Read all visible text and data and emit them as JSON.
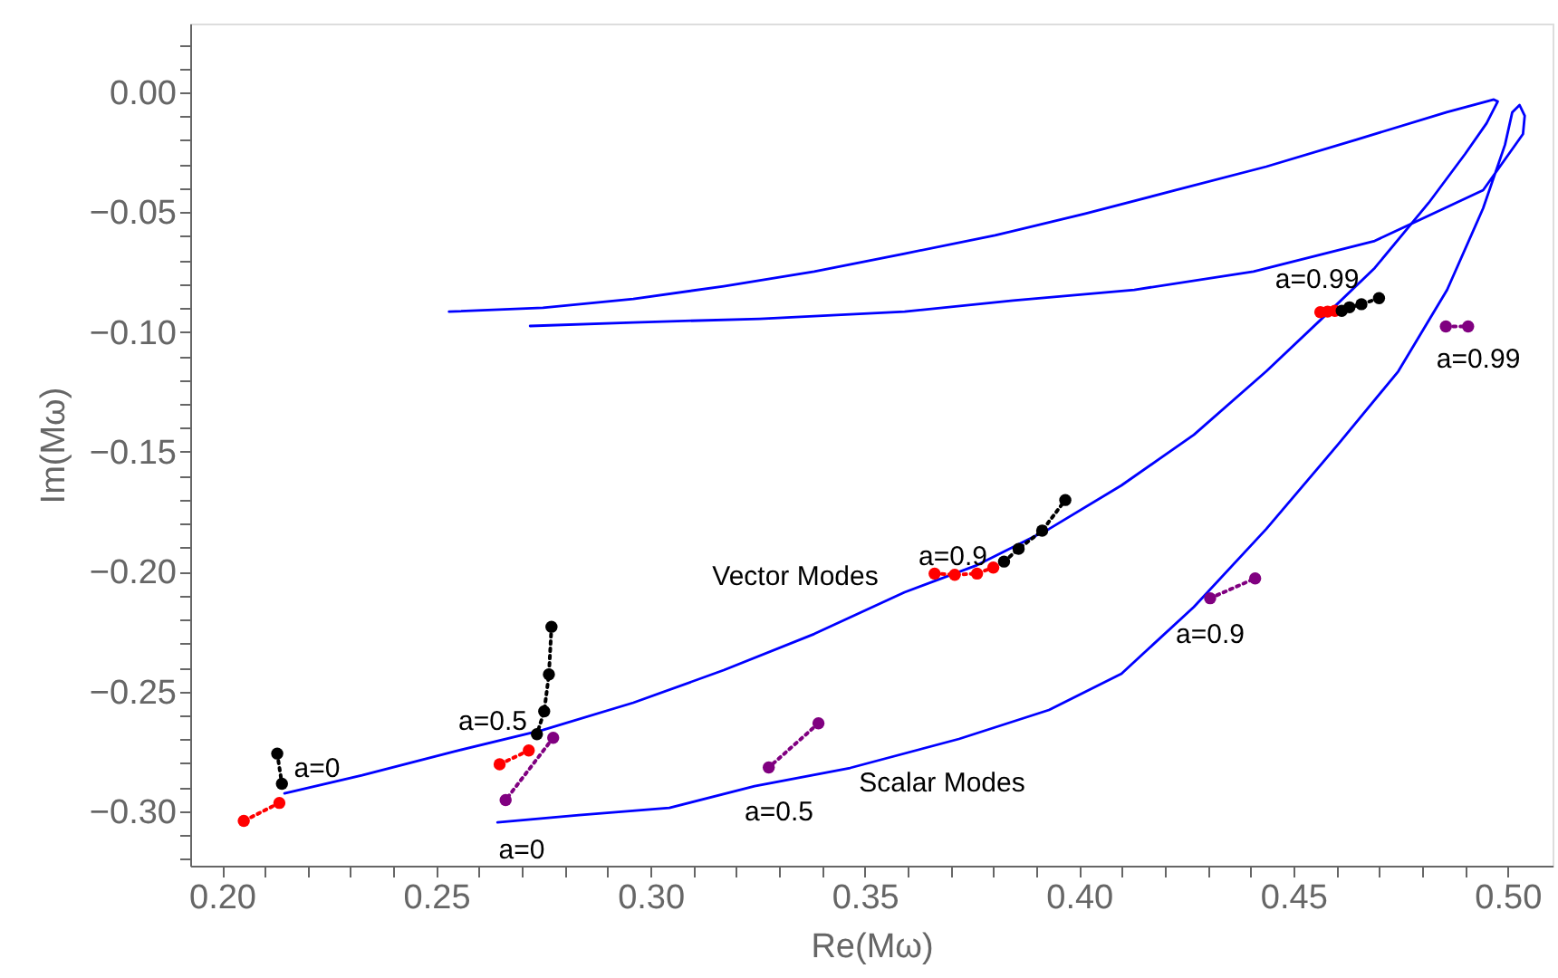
{
  "chart_data": {
    "type": "line",
    "xlabel": "Re(Mω)",
    "ylabel": "Im(Mω)",
    "grid": false,
    "xlim": [
      0.1926,
      0.5105
    ],
    "ylim": [
      -0.3227,
      0.0287
    ],
    "xticks": [
      {
        "value": 0.2,
        "label": "0.20"
      },
      {
        "value": 0.21,
        "label": null
      },
      {
        "value": 0.22,
        "label": null
      },
      {
        "value": 0.23,
        "label": null
      },
      {
        "value": 0.24,
        "label": null
      },
      {
        "value": 0.25,
        "label": "0.25"
      },
      {
        "value": 0.26,
        "label": null
      },
      {
        "value": 0.27,
        "label": null
      },
      {
        "value": 0.28,
        "label": null
      },
      {
        "value": 0.29,
        "label": null
      },
      {
        "value": 0.3,
        "label": "0.30"
      },
      {
        "value": 0.31,
        "label": null
      },
      {
        "value": 0.32,
        "label": null
      },
      {
        "value": 0.33,
        "label": null
      },
      {
        "value": 0.34,
        "label": null
      },
      {
        "value": 0.35,
        "label": "0.35"
      },
      {
        "value": 0.36,
        "label": null
      },
      {
        "value": 0.37,
        "label": null
      },
      {
        "value": 0.38,
        "label": null
      },
      {
        "value": 0.39,
        "label": null
      },
      {
        "value": 0.4,
        "label": "0.40"
      },
      {
        "value": 0.41,
        "label": null
      },
      {
        "value": 0.42,
        "label": null
      },
      {
        "value": 0.43,
        "label": null
      },
      {
        "value": 0.44,
        "label": null
      },
      {
        "value": 0.45,
        "label": "0.45"
      },
      {
        "value": 0.46,
        "label": null
      },
      {
        "value": 0.47,
        "label": null
      },
      {
        "value": 0.48,
        "label": null
      },
      {
        "value": 0.49,
        "label": null
      },
      {
        "value": 0.5,
        "label": "0.50"
      }
    ],
    "yticks": [
      {
        "value": -0.32,
        "label": null
      },
      {
        "value": -0.31,
        "label": null
      },
      {
        "value": -0.3,
        "label": "−0.30"
      },
      {
        "value": -0.29,
        "label": null
      },
      {
        "value": -0.28,
        "label": null
      },
      {
        "value": -0.27,
        "label": null
      },
      {
        "value": -0.26,
        "label": null
      },
      {
        "value": -0.25,
        "label": "−0.25"
      },
      {
        "value": -0.24,
        "label": null
      },
      {
        "value": -0.23,
        "label": null
      },
      {
        "value": -0.22,
        "label": null
      },
      {
        "value": -0.21,
        "label": null
      },
      {
        "value": -0.2,
        "label": "−0.20"
      },
      {
        "value": -0.19,
        "label": null
      },
      {
        "value": -0.18,
        "label": null
      },
      {
        "value": -0.17,
        "label": null
      },
      {
        "value": -0.16,
        "label": null
      },
      {
        "value": -0.15,
        "label": "−0.15"
      },
      {
        "value": -0.14,
        "label": null
      },
      {
        "value": -0.13,
        "label": null
      },
      {
        "value": -0.12,
        "label": null
      },
      {
        "value": -0.11,
        "label": null
      },
      {
        "value": -0.1,
        "label": "−0.10"
      },
      {
        "value": -0.09,
        "label": null
      },
      {
        "value": -0.08,
        "label": null
      },
      {
        "value": -0.07,
        "label": null
      },
      {
        "value": -0.06,
        "label": null
      },
      {
        "value": -0.05,
        "label": "−0.05"
      },
      {
        "value": -0.04,
        "label": null
      },
      {
        "value": -0.03,
        "label": null
      },
      {
        "value": -0.02,
        "label": null
      },
      {
        "value": -0.01,
        "label": null
      },
      {
        "value": 0.0,
        "label": "0.00"
      },
      {
        "value": 0.01,
        "label": null
      },
      {
        "value": 0.02,
        "label": null
      }
    ],
    "series": [
      {
        "color": "#0000ff",
        "line_style": "solid",
        "marker": "none",
        "x": [
          0.2146,
          0.2327,
          0.2538,
          0.2749,
          0.296,
          0.3171,
          0.3382,
          0.3593,
          0.3762,
          0.393,
          0.4099,
          0.4268,
          0.4437,
          0.4584,
          0.469,
          0.4816,
          0.4901,
          0.4951,
          0.4977,
          0.4968,
          0.4858,
          0.4648,
          0.4437,
          0.4226,
          0.4015,
          0.3804,
          0.3593,
          0.3382,
          0.3171,
          0.296,
          0.2749,
          0.253
        ],
        "values": [
          -0.2925,
          -0.285,
          -0.2752,
          -0.2661,
          -0.2547,
          -0.2411,
          -0.226,
          -0.2086,
          -0.1973,
          -0.1822,
          -0.164,
          -0.1429,
          -0.1164,
          -0.0915,
          -0.0733,
          -0.0461,
          -0.0257,
          -0.0129,
          -0.0038,
          -0.003,
          -0.0083,
          -0.0197,
          -0.031,
          -0.0408,
          -0.0506,
          -0.0597,
          -0.0673,
          -0.0748,
          -0.0809,
          -0.0862,
          -0.0899,
          -0.0915
        ]
      },
      {
        "color": "#0000ff",
        "line_style": "solid",
        "marker": "none",
        "x": [
          0.2643,
          0.2833,
          0.3044,
          0.3243,
          0.3466,
          0.372,
          0.393,
          0.4099,
          0.4268,
          0.4437,
          0.4606,
          0.4745,
          0.4859,
          0.4943,
          0.4994,
          0.5011,
          0.5028,
          0.504,
          0.5036,
          0.4943,
          0.469,
          0.4407,
          0.4129,
          0.3846,
          0.3593,
          0.3255,
          0.296,
          0.2719
        ],
        "values": [
          -0.3046,
          -0.3016,
          -0.2986,
          -0.2895,
          -0.2819,
          -0.2698,
          -0.2577,
          -0.2426,
          -0.2147,
          -0.1822,
          -0.1466,
          -0.1164,
          -0.0824,
          -0.0484,
          -0.0219,
          -0.0083,
          -0.0053,
          -0.0098,
          -0.0174,
          -0.0408,
          -0.062,
          -0.0748,
          -0.0824,
          -0.0869,
          -0.0915,
          -0.0945,
          -0.096,
          -0.0975
        ]
      },
      {
        "color": "#000000",
        "line_style": "dotted",
        "marker": "circle",
        "x": [
          0.2129,
          0.214
        ],
        "values": [
          -0.2759,
          -0.2885
        ]
      },
      {
        "color": "#ff0000",
        "line_style": "dotted",
        "marker": "circle",
        "x": [
          0.2134,
          0.2051
        ],
        "values": [
          -0.2965,
          -0.304
        ]
      },
      {
        "color": "#000000",
        "line_style": "dotted",
        "marker": "circle",
        "x": [
          0.2769,
          0.2763,
          0.2752,
          0.2735
        ],
        "values": [
          -0.223,
          -0.2429,
          -0.2583,
          -0.2678
        ]
      },
      {
        "color": "#ff0000",
        "line_style": "dotted",
        "marker": "circle",
        "x": [
          0.2716,
          0.2648
        ],
        "values": [
          -0.2746,
          -0.2804
        ]
      },
      {
        "color": "#800080",
        "line_style": "dotted",
        "marker": "circle",
        "x": [
          0.2773,
          0.2662
        ],
        "values": [
          -0.2693,
          -0.2953
        ]
      },
      {
        "color": "#800080",
        "line_style": "dotted",
        "marker": "circle",
        "x": [
          0.3392,
          0.3276
        ],
        "values": [
          -0.2633,
          -0.2817
        ]
      },
      {
        "color": "#ff0000",
        "line_style": "dotted",
        "marker": "circle",
        "x": [
          0.3663,
          0.371,
          0.3762,
          0.38
        ],
        "values": [
          -0.2008,
          -0.2013,
          -0.2008,
          -0.1983
        ]
      },
      {
        "color": "#000000",
        "line_style": "dotted",
        "marker": "circle",
        "x": [
          0.3825,
          0.3859,
          0.3914,
          0.3968
        ],
        "values": [
          -0.1958,
          -0.1905,
          -0.1829,
          -0.1701
        ]
      },
      {
        "color": "#800080",
        "line_style": "dotted",
        "marker": "circle",
        "x": [
          0.4306,
          0.4411
        ],
        "values": [
          -0.2111,
          -0.2028
        ]
      },
      {
        "type": "scatter",
        "color": "#ff0000",
        "marker": "circle",
        "x": [
          0.4563,
          0.458,
          0.4597
        ],
        "values": [
          -0.0917,
          -0.0915,
          -0.0912
        ]
      },
      {
        "color": "#000000",
        "line_style": "dotted",
        "marker": "circle",
        "x": [
          0.4613,
          0.4631,
          0.4659,
          0.47
        ],
        "values": [
          -0.0912,
          -0.0897,
          -0.0884,
          -0.0859
        ]
      },
      {
        "color": "#800080",
        "line_style": "dotted",
        "marker": "circle",
        "x": [
          0.4856,
          0.4908
        ],
        "values": [
          -0.0977,
          -0.0977
        ]
      }
    ],
    "annotations": [
      "a=0",
      "a=0.5",
      "a=0.9",
      "a=0.99",
      "Vector Modes",
      "Scalar Modes",
      "a=0",
      "a=0.5",
      "a=0.9",
      "a=0.99"
    ]
  }
}
